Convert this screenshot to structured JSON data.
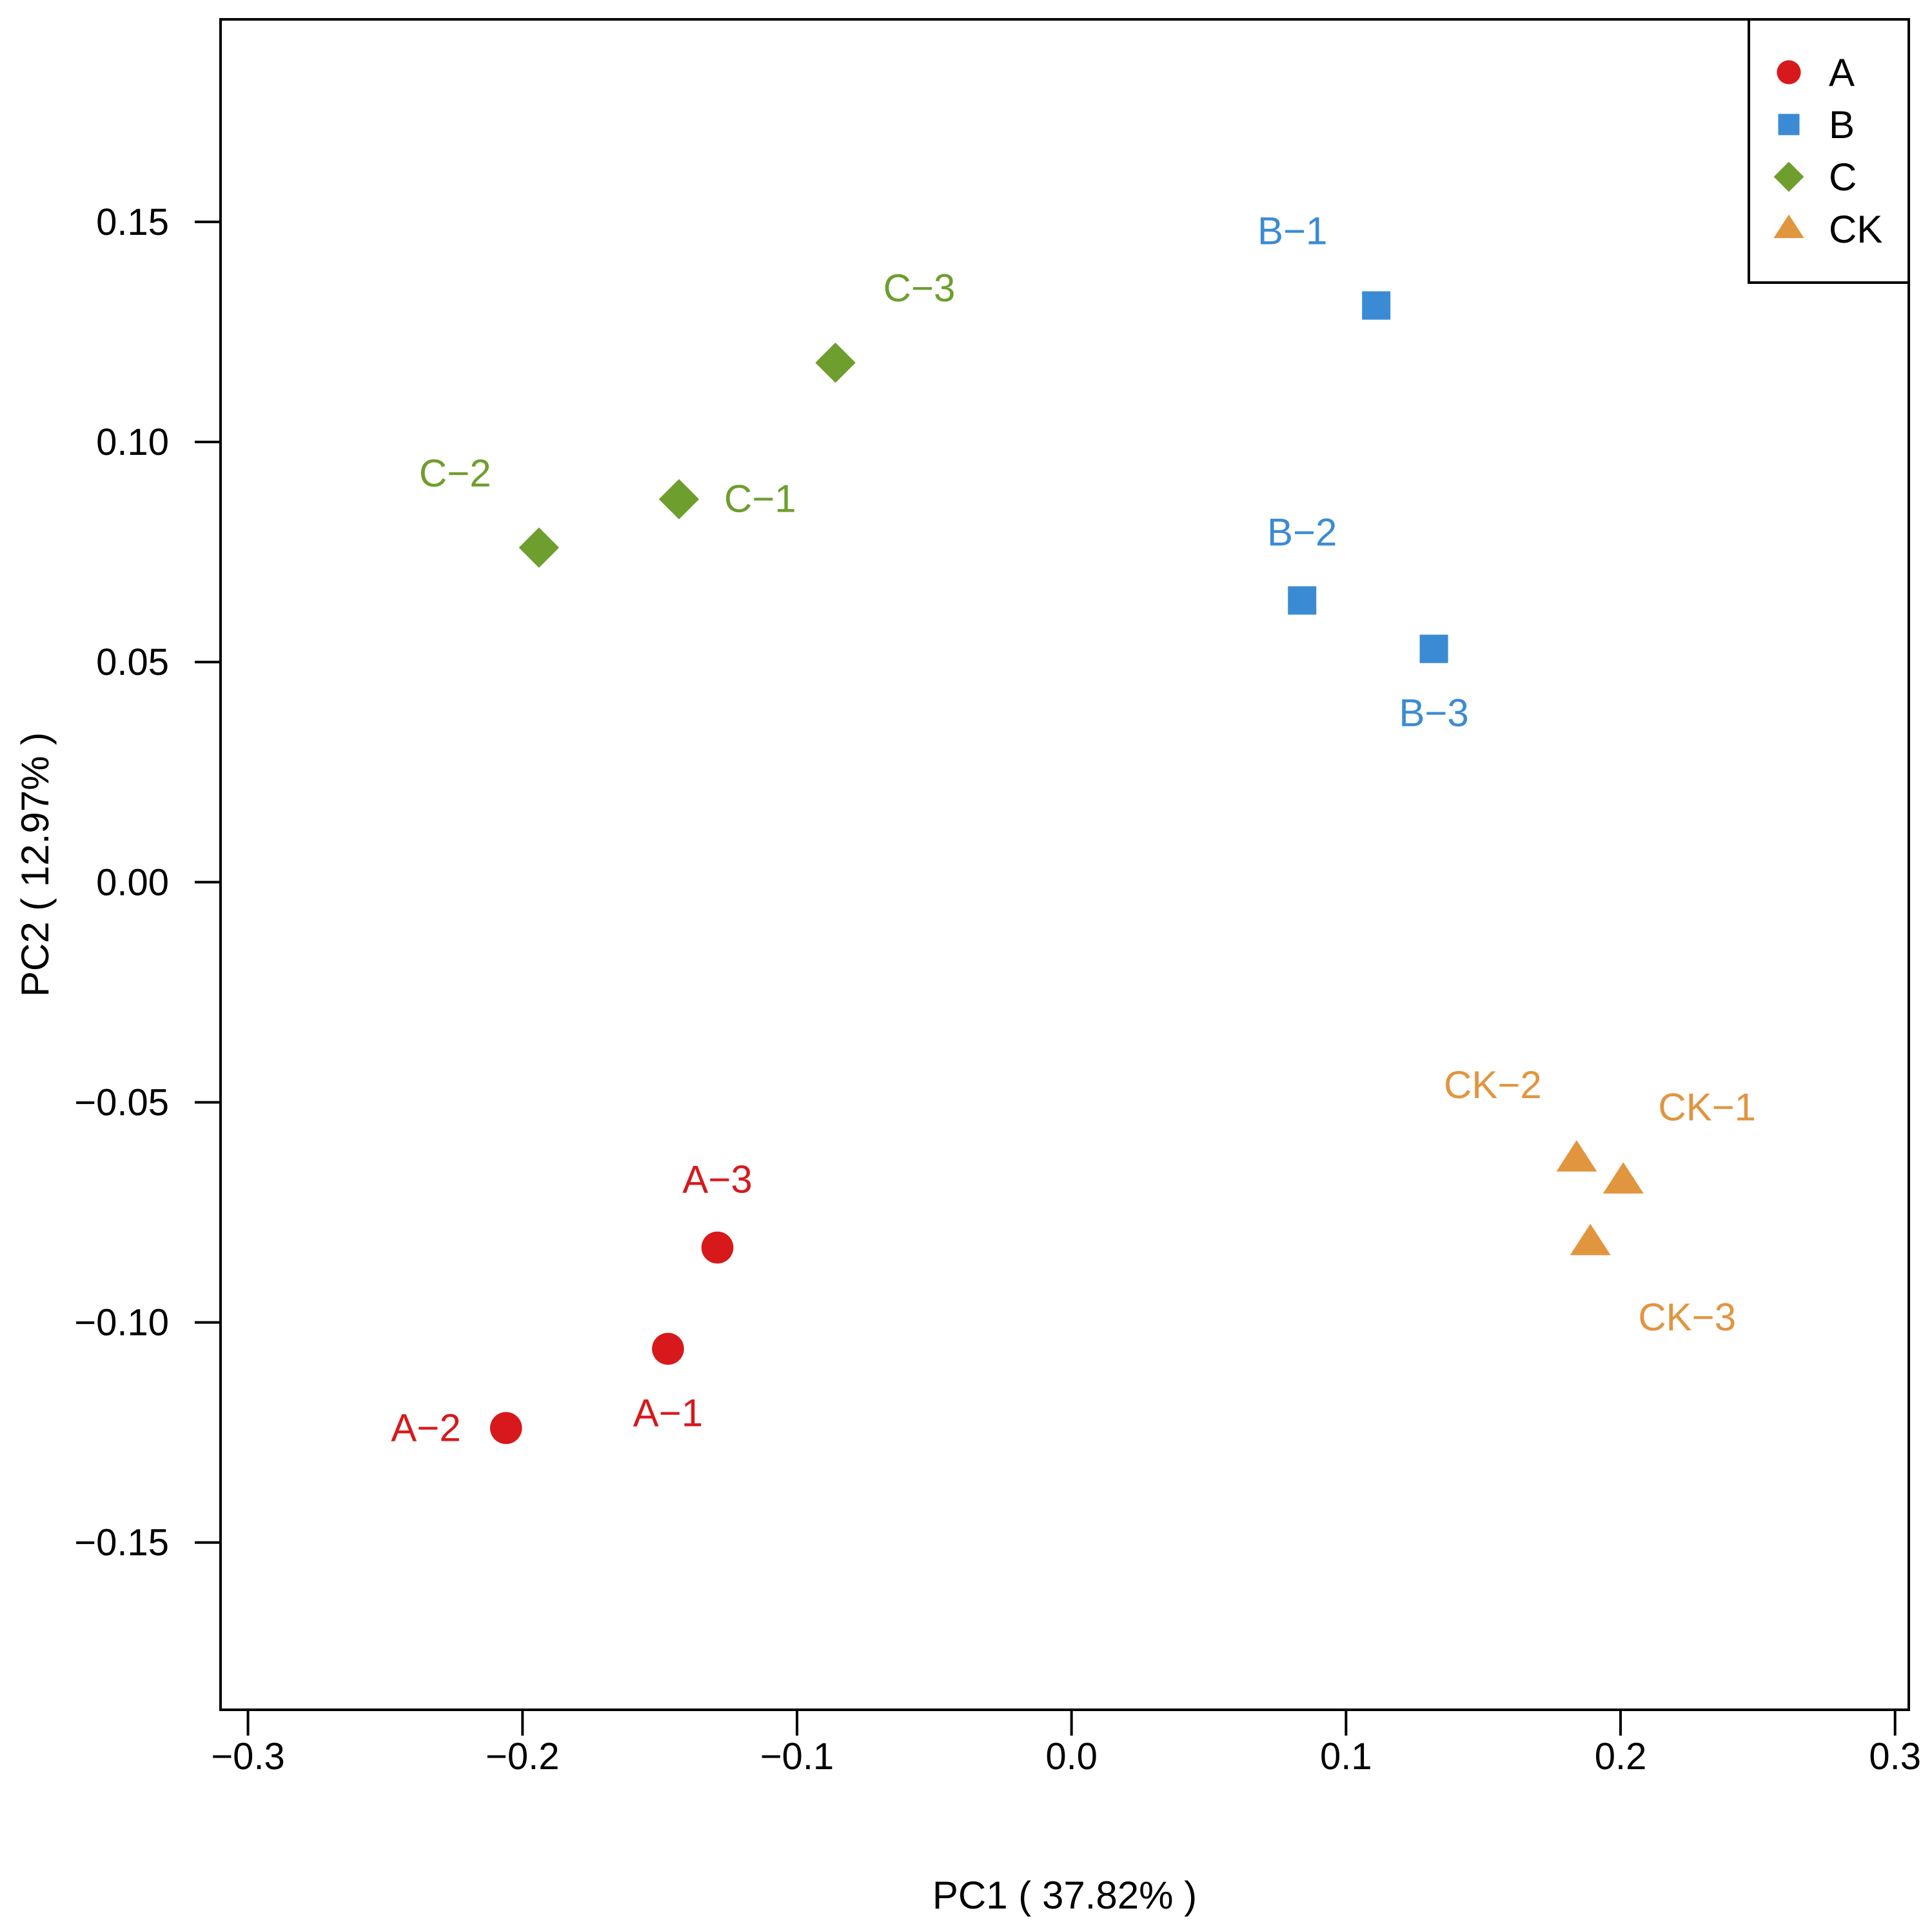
{
  "chart_data": {
    "type": "scatter",
    "title": "",
    "xlabel": "PC1 ( 37.82% )",
    "ylabel": "PC2 ( 12.97% )",
    "xlim": [
      -0.31,
      0.305
    ],
    "ylim": [
      -0.188,
      0.196
    ],
    "xticks": [
      -0.3,
      -0.2,
      -0.1,
      0.0,
      0.1,
      0.2,
      0.3
    ],
    "xtick_labels": [
      "−0.3",
      "−0.2",
      "−0.1",
      "0.0",
      "0.1",
      "0.2",
      "0.3"
    ],
    "yticks": [
      -0.15,
      -0.1,
      -0.05,
      0.0,
      0.05,
      0.1,
      0.15
    ],
    "ytick_labels": [
      "−0.15",
      "−0.10",
      "−0.05",
      "0.00",
      "0.05",
      "0.10",
      "0.15"
    ],
    "grid": false,
    "legend_position": "top-right",
    "series": [
      {
        "name": "A",
        "color": "#D7191C",
        "marker": "circle",
        "points": [
          {
            "label": "A−1",
            "x": -0.147,
            "y": -0.106,
            "label_pos": "below"
          },
          {
            "label": "A−2",
            "x": -0.206,
            "y": -0.124,
            "label_pos": "left"
          },
          {
            "label": "A−3",
            "x": -0.129,
            "y": -0.083,
            "label_pos": "above"
          }
        ]
      },
      {
        "name": "B",
        "color": "#3B8BD4",
        "marker": "square",
        "points": [
          {
            "label": "B−1",
            "x": 0.111,
            "y": 0.131,
            "label_pos": "above-left"
          },
          {
            "label": "B−2",
            "x": 0.084,
            "y": 0.064,
            "label_pos": "above"
          },
          {
            "label": "B−3",
            "x": 0.132,
            "y": 0.053,
            "label_pos": "below"
          }
        ]
      },
      {
        "name": "C",
        "color": "#6E9E2E",
        "marker": "diamond",
        "points": [
          {
            "label": "C−1",
            "x": -0.143,
            "y": 0.087,
            "label_pos": "right"
          },
          {
            "label": "C−2",
            "x": -0.194,
            "y": 0.076,
            "label_pos": "above-left"
          },
          {
            "label": "C−3",
            "x": -0.086,
            "y": 0.118,
            "label_pos": "above-right"
          }
        ]
      },
      {
        "name": "CK",
        "color": "#E1953F",
        "marker": "triangle",
        "points": [
          {
            "label": "CK−1",
            "x": 0.201,
            "y": -0.068,
            "label_pos": "above-right"
          },
          {
            "label": "CK−2",
            "x": 0.184,
            "y": -0.063,
            "label_pos": "above-left"
          },
          {
            "label": "CK−3",
            "x": 0.189,
            "y": -0.082,
            "label_pos": "below-right"
          }
        ]
      }
    ]
  }
}
